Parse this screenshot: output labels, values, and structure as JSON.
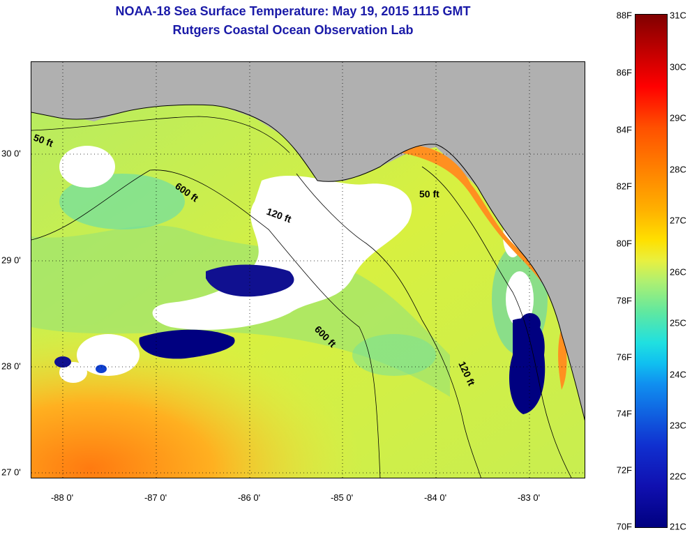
{
  "header": {
    "title": "NOAA-18 Sea Surface Temperature:  May 19, 2015 1115 GMT",
    "subtitle": "Rutgers Coastal Ocean Observation Lab"
  },
  "map": {
    "lon_labels": [
      "-88 0'",
      "-87 0'",
      "-86 0'",
      "-85 0'",
      "-84 0'",
      "-83 0'"
    ],
    "lat_labels": [
      "30 0'",
      "29 0'",
      "28 0'",
      "27 0'"
    ],
    "contour_labels": [
      "50 ft",
      "600 ft",
      "120 ft",
      "600 ft",
      "50 ft",
      "120 ft"
    ],
    "colors": {
      "land": "#b0b0b0",
      "cloud": "#ffffff",
      "cold": "#000080",
      "warm": "#ff8000",
      "mid": "#c8f050"
    }
  },
  "colorbar": {
    "fahrenheit_labels": [
      "88F",
      "86F",
      "84F",
      "82F",
      "80F",
      "78F",
      "76F",
      "74F",
      "72F",
      "70F"
    ],
    "celsius_labels": [
      "31C",
      "30C",
      "29C",
      "28C",
      "27C",
      "26C",
      "25C",
      "24C",
      "23C",
      "22C",
      "21C"
    ]
  }
}
